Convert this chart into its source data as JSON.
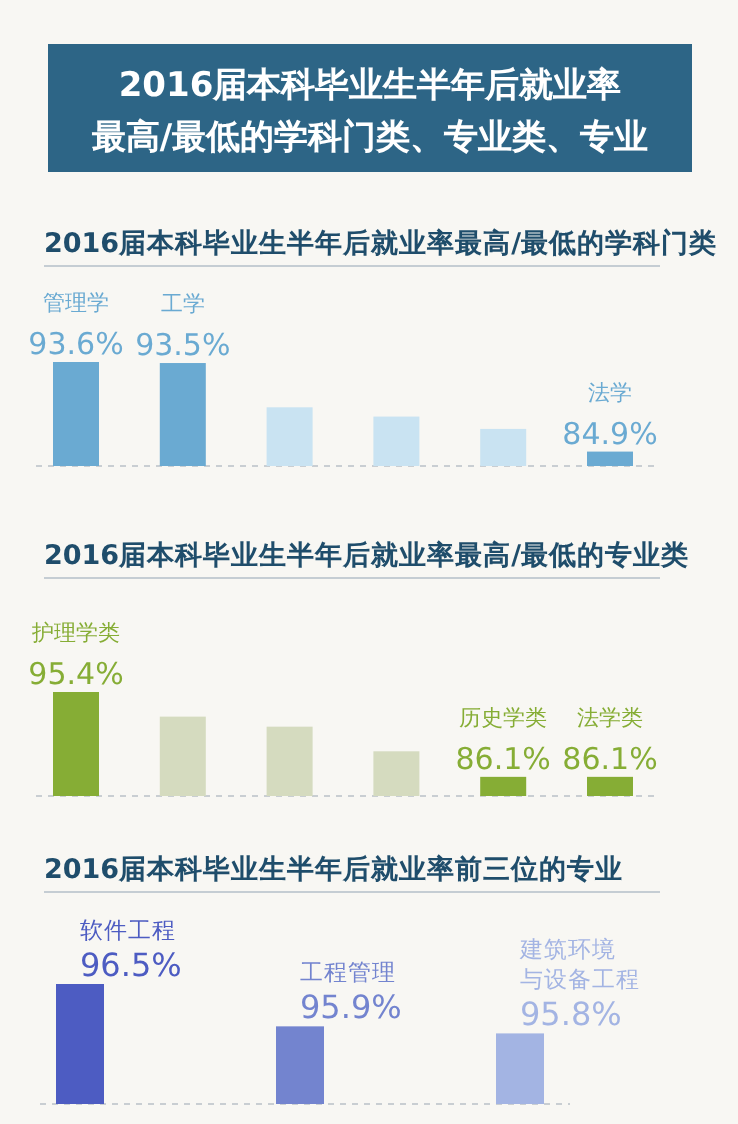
{
  "chart_data": [
    {
      "type": "other",
      "title": "2016届本科毕业生半年后就业率最高/最低的学科门类、专业类、专业"
    },
    {
      "type": "bar",
      "title": "2016届本科毕业生半年后就业率最高/最低的学科门类",
      "categories": [
        "管理学",
        "工学",
        null,
        null,
        null,
        "法学"
      ],
      "values": [
        93.6,
        93.5,
        89.2,
        88.3,
        87.1,
        84.9
      ],
      "ylim": [
        83.5,
        93.6
      ],
      "colors": [
        "#6aaad2",
        "#6aaad2",
        "#c9e3f2",
        "#c9e3f2",
        "#c9e3f2",
        "#6aaad2"
      ],
      "value_labels": [
        "93.6%",
        "93.5%",
        null,
        null,
        null,
        "84.9%"
      ]
    },
    {
      "type": "bar",
      "title": "2016届本科毕业生半年后就业率最高/最低的专业类",
      "categories": [
        "护理学类",
        null,
        null,
        null,
        "历史学类",
        "法学类"
      ],
      "values": [
        95.4,
        92.7,
        91.6,
        88.9,
        86.1,
        86.1
      ],
      "ylim": [
        84.0,
        95.4
      ],
      "colors": [
        "#86ad35",
        "#d5dbbf",
        "#d5dbbf",
        "#d5dbbf",
        "#86ad35",
        "#86ad35"
      ],
      "value_labels": [
        "95.4%",
        null,
        null,
        null,
        "86.1%",
        "86.1%"
      ]
    },
    {
      "type": "bar",
      "title": "2016届本科毕业生半年后就业率前三位的专业",
      "categories": [
        "软件工程",
        "工程管理",
        "建筑环境与设备工程"
      ],
      "values": [
        96.5,
        95.9,
        95.8
      ],
      "ylim": [
        94.8,
        96.5
      ],
      "colors": [
        "#4d5cc2",
        "#7384cf",
        "#a3b4e3"
      ],
      "value_labels": [
        "96.5%",
        "95.9%",
        "95.8%"
      ]
    }
  ]
}
